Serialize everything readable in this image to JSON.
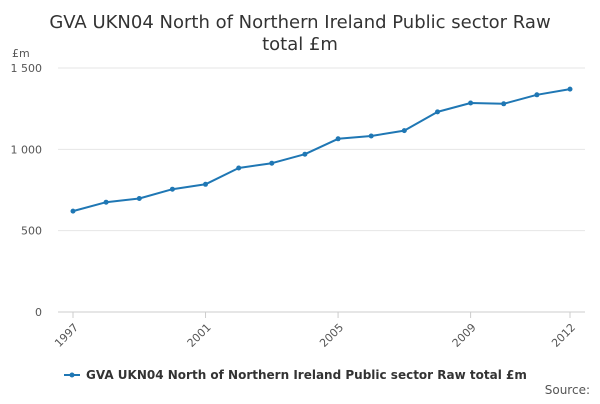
{
  "chart_data": {
    "type": "line",
    "title": "GVA UKN04 North of Northern Ireland Public sector Raw total £m",
    "title_lines": [
      "GVA UKN04 North of Northern Ireland Public sector Raw",
      "total £m"
    ],
    "ylabel": "£m",
    "xlabel": "",
    "ylim": [
      0,
      1500
    ],
    "yticks": [
      0,
      500,
      1000,
      1500
    ],
    "ytick_labels": [
      "0",
      "500",
      "1 000",
      "1 500"
    ],
    "xlim": [
      1997,
      2012
    ],
    "xticks": [
      1997,
      2001,
      2005,
      2009,
      2012
    ],
    "xtick_labels": [
      "1997",
      "2001",
      "2005",
      "2009",
      "2012"
    ],
    "grid": true,
    "legend_position": "bottom",
    "source_label": "Source:",
    "series": [
      {
        "name": "GVA UKN04 North of Northern Ireland Public sector Raw total £m",
        "color": "#1f77b4",
        "x": [
          1997,
          1998,
          1999,
          2000,
          2001,
          2002,
          2003,
          2004,
          2005,
          2006,
          2007,
          2008,
          2009,
          2010,
          2011,
          2012
        ],
        "values": [
          620,
          675,
          698,
          755,
          785,
          885,
          915,
          970,
          1065,
          1082,
          1115,
          1230,
          1285,
          1280,
          1335,
          1370
        ]
      }
    ]
  }
}
